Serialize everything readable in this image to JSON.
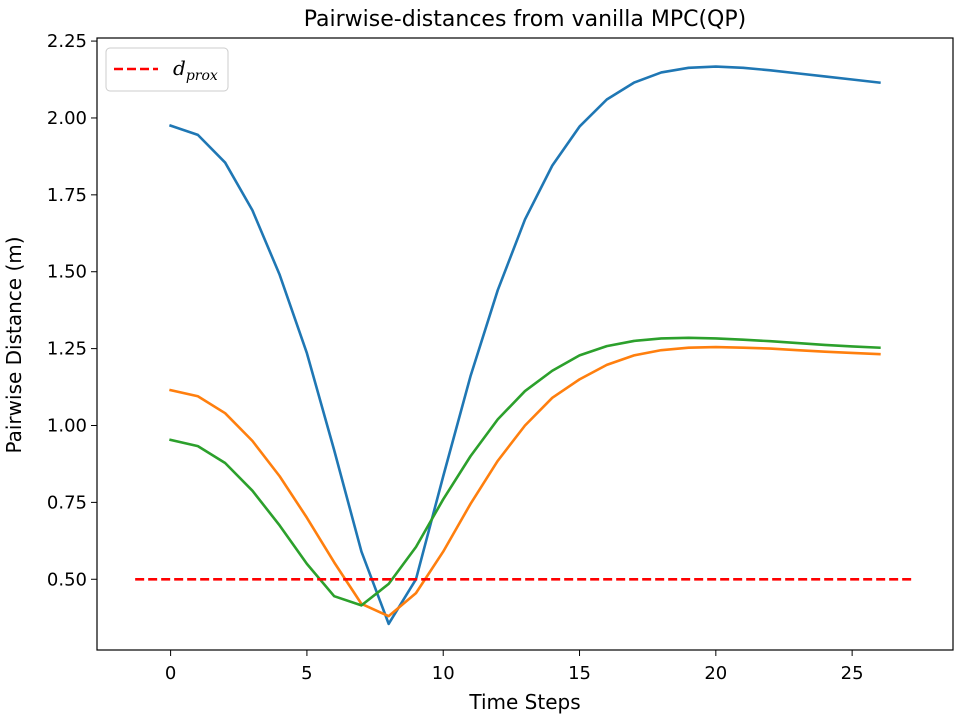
{
  "chart_data": {
    "type": "line",
    "title": "Pairwise-distances from vanilla MPC(QP)",
    "xlabel": "Time Steps",
    "ylabel": "Pairwise Distance (m)",
    "xlim": [
      -2.7,
      28.7
    ],
    "ylim": [
      0.27,
      2.26
    ],
    "xticks": [
      0,
      5,
      10,
      15,
      20,
      25
    ],
    "xtick_labels": [
      "0",
      "5",
      "10",
      "15",
      "20",
      "25"
    ],
    "yticks": [
      0.5,
      0.75,
      1.0,
      1.25,
      1.5,
      1.75,
      2.0,
      2.25
    ],
    "ytick_labels": [
      "0.50",
      "0.75",
      "1.00",
      "1.25",
      "1.50",
      "1.75",
      "2.00",
      "2.25"
    ],
    "grid": false,
    "legend": {
      "placement": "upper-left",
      "entry": {
        "base": "d",
        "sub": "prox"
      }
    },
    "x": [
      0,
      1,
      2,
      3,
      4,
      5,
      6,
      7,
      8,
      9,
      10,
      11,
      12,
      13,
      14,
      15,
      16,
      17,
      18,
      19,
      20,
      21,
      22,
      23,
      24,
      25,
      26
    ],
    "series": [
      {
        "color": "#1f77b4",
        "values": [
          1.975,
          1.945,
          1.855,
          1.7,
          1.49,
          1.235,
          0.92,
          0.59,
          0.355,
          0.5,
          0.835,
          1.16,
          1.44,
          1.67,
          1.845,
          1.972,
          2.06,
          2.115,
          2.148,
          2.163,
          2.167,
          2.163,
          2.155,
          2.145,
          2.135,
          2.125,
          2.115
        ]
      },
      {
        "color": "#ff7f0e",
        "values": [
          1.115,
          1.095,
          1.04,
          0.95,
          0.835,
          0.7,
          0.555,
          0.42,
          0.38,
          0.455,
          0.59,
          0.745,
          0.885,
          1.0,
          1.09,
          1.15,
          1.197,
          1.228,
          1.245,
          1.253,
          1.255,
          1.253,
          1.25,
          1.245,
          1.24,
          1.236,
          1.232
        ]
      },
      {
        "color": "#2ca02c",
        "values": [
          0.953,
          0.933,
          0.878,
          0.788,
          0.675,
          0.55,
          0.445,
          0.415,
          0.485,
          0.605,
          0.76,
          0.9,
          1.02,
          1.112,
          1.178,
          1.228,
          1.258,
          1.275,
          1.283,
          1.285,
          1.283,
          1.279,
          1.274,
          1.268,
          1.262,
          1.257,
          1.253
        ]
      }
    ],
    "threshold": {
      "label": "d_prox",
      "x_range": [
        -1.3,
        27.3
      ],
      "y": 0.5,
      "color": "#ff0000",
      "style": "dashed"
    }
  }
}
